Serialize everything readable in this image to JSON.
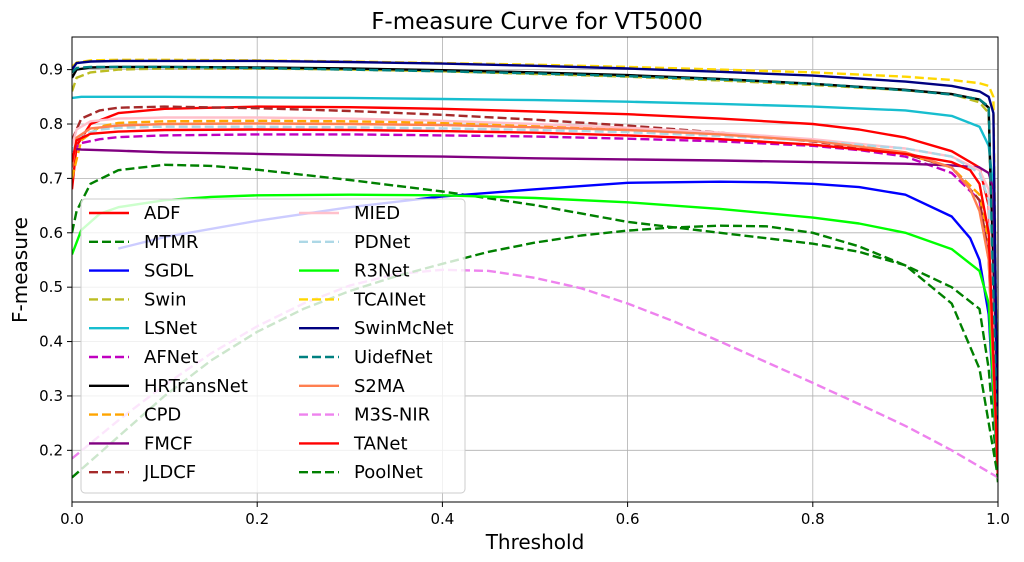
{
  "chart_data": {
    "type": "line",
    "title": "F-measure Curve for VT5000",
    "xlabel": "Threshold",
    "ylabel": "F-measure",
    "xlim": [
      0,
      1
    ],
    "ylim": [
      0.105,
      0.96
    ],
    "xticks": [
      "0.0",
      "0.2",
      "0.4",
      "0.6",
      "0.8",
      "1.0"
    ],
    "xtick_values": [
      0,
      0.2,
      0.4,
      0.6,
      0.8,
      1.0
    ],
    "yticks": [
      "0.2",
      "0.3",
      "0.4",
      "0.5",
      "0.6",
      "0.7",
      "0.8",
      "0.9"
    ],
    "ytick_values": [
      0.2,
      0.3,
      0.4,
      0.5,
      0.6,
      0.7,
      0.8,
      0.9
    ],
    "grid": true,
    "legend_position": "lower-left",
    "series": [
      {
        "name": "ADF",
        "color": "#ff0000",
        "dash": false,
        "x": [
          0,
          0.005,
          0.02,
          0.05,
          0.1,
          0.2,
          0.3,
          0.4,
          0.5,
          0.6,
          0.7,
          0.8,
          0.85,
          0.9,
          0.95,
          0.98,
          0.99,
          0.995,
          1.0
        ],
        "y": [
          0.68,
          0.76,
          0.8,
          0.82,
          0.828,
          0.832,
          0.831,
          0.828,
          0.823,
          0.818,
          0.81,
          0.8,
          0.79,
          0.775,
          0.75,
          0.72,
          0.65,
          0.4,
          0.15
        ]
      },
      {
        "name": "MTMR",
        "color": "#008000",
        "dash": true,
        "x": [
          0,
          0.005,
          0.02,
          0.05,
          0.1,
          0.15,
          0.2,
          0.3,
          0.4,
          0.5,
          0.6,
          0.7,
          0.8,
          0.85,
          0.9,
          0.95,
          0.98,
          0.99,
          1.0
        ],
        "y": [
          0.6,
          0.64,
          0.69,
          0.715,
          0.725,
          0.723,
          0.716,
          0.697,
          0.676,
          0.651,
          0.62,
          0.6,
          0.58,
          0.565,
          0.54,
          0.5,
          0.46,
          0.35,
          0.14
        ]
      },
      {
        "name": "SGDL",
        "color": "#0000ff",
        "dash": false,
        "x": [
          0.05,
          0.1,
          0.2,
          0.3,
          0.4,
          0.5,
          0.6,
          0.7,
          0.75,
          0.8,
          0.85,
          0.9,
          0.95,
          0.97,
          0.98,
          0.99,
          1.0
        ],
        "y": [
          0.571,
          0.592,
          0.622,
          0.647,
          0.667,
          0.68,
          0.692,
          0.694,
          0.693,
          0.69,
          0.684,
          0.67,
          0.63,
          0.59,
          0.55,
          0.45,
          0.15
        ]
      },
      {
        "name": "Swin",
        "color": "#bcbd22",
        "dash": true,
        "x": [
          0,
          0.005,
          0.02,
          0.05,
          0.1,
          0.2,
          0.3,
          0.4,
          0.5,
          0.6,
          0.7,
          0.8,
          0.9,
          0.95,
          0.98,
          0.99,
          1.0
        ],
        "y": [
          0.86,
          0.885,
          0.895,
          0.9,
          0.902,
          0.902,
          0.9,
          0.897,
          0.892,
          0.887,
          0.88,
          0.872,
          0.862,
          0.855,
          0.84,
          0.82,
          0.16
        ]
      },
      {
        "name": "LSNet",
        "color": "#17becf",
        "dash": false,
        "x": [
          0,
          0.01,
          0.05,
          0.1,
          0.2,
          0.3,
          0.4,
          0.5,
          0.6,
          0.7,
          0.8,
          0.9,
          0.95,
          0.98,
          0.99,
          0.995,
          1.0
        ],
        "y": [
          0.848,
          0.85,
          0.85,
          0.85,
          0.849,
          0.848,
          0.846,
          0.844,
          0.841,
          0.837,
          0.832,
          0.825,
          0.815,
          0.795,
          0.76,
          0.68,
          0.16
        ]
      },
      {
        "name": "AFNet",
        "color": "#c000c0",
        "dash": true,
        "x": [
          0,
          0.01,
          0.03,
          0.05,
          0.1,
          0.2,
          0.3,
          0.4,
          0.5,
          0.6,
          0.7,
          0.8,
          0.85,
          0.9,
          0.95,
          0.98,
          0.99,
          1.0
        ],
        "y": [
          0.75,
          0.765,
          0.772,
          0.776,
          0.779,
          0.781,
          0.781,
          0.779,
          0.777,
          0.773,
          0.768,
          0.76,
          0.752,
          0.74,
          0.71,
          0.66,
          0.55,
          0.15
        ]
      },
      {
        "name": "HRTransNet",
        "color": "#000000",
        "dash": false,
        "x": [
          0,
          0.005,
          0.02,
          0.05,
          0.1,
          0.2,
          0.3,
          0.4,
          0.5,
          0.6,
          0.7,
          0.8,
          0.9,
          0.95,
          0.98,
          0.99,
          1.0
        ],
        "y": [
          0.885,
          0.9,
          0.904,
          0.905,
          0.905,
          0.904,
          0.902,
          0.899,
          0.895,
          0.89,
          0.883,
          0.874,
          0.863,
          0.855,
          0.845,
          0.83,
          0.15
        ]
      },
      {
        "name": "CPD",
        "color": "#ffa500",
        "dash": true,
        "x": [
          0,
          0.01,
          0.03,
          0.05,
          0.1,
          0.2,
          0.3,
          0.4,
          0.5,
          0.6,
          0.7,
          0.8,
          0.85,
          0.9,
          0.95,
          0.98,
          0.99,
          1.0
        ],
        "y": [
          0.7,
          0.77,
          0.795,
          0.802,
          0.805,
          0.806,
          0.805,
          0.802,
          0.797,
          0.791,
          0.782,
          0.77,
          0.76,
          0.745,
          0.72,
          0.67,
          0.58,
          0.15
        ]
      },
      {
        "name": "FMCF",
        "color": "#800080",
        "dash": false,
        "x": [
          0,
          0.01,
          0.05,
          0.1,
          0.2,
          0.3,
          0.4,
          0.5,
          0.6,
          0.7,
          0.8,
          0.9,
          0.95,
          0.98,
          0.99,
          0.995,
          1.0
        ],
        "y": [
          0.755,
          0.753,
          0.751,
          0.748,
          0.745,
          0.742,
          0.74,
          0.737,
          0.735,
          0.733,
          0.73,
          0.727,
          0.724,
          0.72,
          0.71,
          0.68,
          0.15
        ]
      },
      {
        "name": "JLDCF",
        "color": "#a52a2a",
        "dash": true,
        "x": [
          0,
          0.01,
          0.03,
          0.05,
          0.1,
          0.2,
          0.3,
          0.4,
          0.5,
          0.6,
          0.7,
          0.8,
          0.9,
          0.95,
          0.98,
          0.99,
          1.0
        ],
        "y": [
          0.77,
          0.81,
          0.825,
          0.83,
          0.832,
          0.829,
          0.824,
          0.817,
          0.808,
          0.797,
          0.784,
          0.768,
          0.745,
          0.72,
          0.66,
          0.56,
          0.15
        ]
      },
      {
        "name": "MIED",
        "color": "#ffc0cb",
        "dash": false,
        "x": [
          0,
          0.005,
          0.02,
          0.05,
          0.1,
          0.2,
          0.3,
          0.4,
          0.5,
          0.6,
          0.7,
          0.8,
          0.9,
          0.95,
          0.98,
          0.99,
          1.0
        ],
        "y": [
          0.76,
          0.79,
          0.805,
          0.81,
          0.812,
          0.812,
          0.81,
          0.806,
          0.8,
          0.793,
          0.784,
          0.772,
          0.755,
          0.74,
          0.715,
          0.68,
          0.15
        ]
      },
      {
        "name": "PDNet",
        "color": "#add8e6",
        "dash": true,
        "x": [
          0,
          0.01,
          0.03,
          0.05,
          0.1,
          0.2,
          0.3,
          0.4,
          0.5,
          0.6,
          0.7,
          0.8,
          0.9,
          0.95,
          0.98,
          0.99,
          1.0
        ],
        "y": [
          0.75,
          0.78,
          0.79,
          0.793,
          0.795,
          0.795,
          0.794,
          0.792,
          0.789,
          0.785,
          0.778,
          0.769,
          0.755,
          0.74,
          0.71,
          0.66,
          0.15
        ]
      },
      {
        "name": "R3Net",
        "color": "#00ff00",
        "dash": false,
        "x": [
          0,
          0.01,
          0.03,
          0.05,
          0.1,
          0.15,
          0.2,
          0.3,
          0.4,
          0.5,
          0.6,
          0.7,
          0.8,
          0.85,
          0.9,
          0.95,
          0.98,
          0.99,
          1.0
        ],
        "y": [
          0.56,
          0.605,
          0.635,
          0.647,
          0.66,
          0.666,
          0.669,
          0.67,
          0.669,
          0.664,
          0.656,
          0.644,
          0.628,
          0.617,
          0.6,
          0.57,
          0.53,
          0.47,
          0.15
        ]
      },
      {
        "name": "TCAINet",
        "color": "#ffd700",
        "dash": true,
        "x": [
          0,
          0.005,
          0.02,
          0.05,
          0.1,
          0.2,
          0.3,
          0.4,
          0.5,
          0.6,
          0.7,
          0.8,
          0.9,
          0.95,
          0.98,
          0.99,
          0.995,
          1.0
        ],
        "y": [
          0.905,
          0.913,
          0.917,
          0.918,
          0.918,
          0.917,
          0.915,
          0.912,
          0.909,
          0.905,
          0.9,
          0.895,
          0.887,
          0.881,
          0.875,
          0.87,
          0.85,
          0.16
        ]
      },
      {
        "name": "SwinMcNet",
        "color": "#000080",
        "dash": false,
        "x": [
          0,
          0.005,
          0.02,
          0.05,
          0.1,
          0.2,
          0.3,
          0.4,
          0.5,
          0.6,
          0.7,
          0.8,
          0.9,
          0.95,
          0.98,
          0.99,
          0.995,
          1.0
        ],
        "y": [
          0.9,
          0.912,
          0.915,
          0.916,
          0.916,
          0.916,
          0.914,
          0.911,
          0.907,
          0.902,
          0.896,
          0.889,
          0.878,
          0.87,
          0.86,
          0.85,
          0.82,
          0.15
        ]
      },
      {
        "name": "UidefNet",
        "color": "#008080",
        "dash": true,
        "x": [
          0,
          0.005,
          0.02,
          0.05,
          0.1,
          0.2,
          0.3,
          0.4,
          0.5,
          0.6,
          0.7,
          0.8,
          0.9,
          0.95,
          0.98,
          0.99,
          1.0
        ],
        "y": [
          0.895,
          0.903,
          0.905,
          0.905,
          0.905,
          0.903,
          0.9,
          0.897,
          0.893,
          0.888,
          0.882,
          0.874,
          0.862,
          0.854,
          0.845,
          0.832,
          0.15
        ]
      },
      {
        "name": "S2MA",
        "color": "#ff7f50",
        "dash": false,
        "x": [
          0,
          0.005,
          0.02,
          0.05,
          0.1,
          0.2,
          0.3,
          0.4,
          0.5,
          0.6,
          0.7,
          0.8,
          0.9,
          0.95,
          0.97,
          0.98,
          0.99,
          1.0
        ],
        "y": [
          0.72,
          0.775,
          0.792,
          0.797,
          0.8,
          0.801,
          0.8,
          0.798,
          0.794,
          0.789,
          0.781,
          0.769,
          0.748,
          0.72,
          0.68,
          0.64,
          0.55,
          0.15
        ]
      },
      {
        "name": "M3S-NIR",
        "color": "#ee82ee",
        "dash": true,
        "x": [
          0,
          0.05,
          0.1,
          0.15,
          0.2,
          0.25,
          0.3,
          0.35,
          0.4,
          0.45,
          0.5,
          0.55,
          0.6,
          0.65,
          0.7,
          0.75,
          0.8,
          0.85,
          0.9,
          0.95,
          1.0
        ],
        "y": [
          0.185,
          0.255,
          0.32,
          0.378,
          0.428,
          0.47,
          0.503,
          0.524,
          0.532,
          0.53,
          0.517,
          0.498,
          0.47,
          0.437,
          0.4,
          0.362,
          0.324,
          0.285,
          0.245,
          0.2,
          0.15
        ]
      },
      {
        "name": "TANet",
        "color": "#ff0000",
        "dash": false,
        "x": [
          0,
          0.005,
          0.02,
          0.05,
          0.1,
          0.2,
          0.3,
          0.4,
          0.5,
          0.6,
          0.7,
          0.8,
          0.9,
          0.95,
          0.97,
          0.98,
          0.99,
          1.0
        ],
        "y": [
          0.73,
          0.77,
          0.782,
          0.786,
          0.789,
          0.79,
          0.789,
          0.787,
          0.784,
          0.779,
          0.772,
          0.762,
          0.745,
          0.73,
          0.715,
          0.69,
          0.6,
          0.15
        ]
      },
      {
        "name": "PoolNet",
        "color": "#008000",
        "dash": true,
        "x": [
          0,
          0.05,
          0.1,
          0.15,
          0.2,
          0.25,
          0.3,
          0.35,
          0.4,
          0.45,
          0.5,
          0.55,
          0.6,
          0.65,
          0.7,
          0.75,
          0.8,
          0.85,
          0.9,
          0.95,
          0.98,
          1.0
        ],
        "y": [
          0.15,
          0.225,
          0.3,
          0.365,
          0.418,
          0.46,
          0.493,
          0.52,
          0.543,
          0.565,
          0.582,
          0.595,
          0.604,
          0.61,
          0.613,
          0.612,
          0.6,
          0.575,
          0.54,
          0.47,
          0.35,
          0.15
        ]
      }
    ]
  }
}
